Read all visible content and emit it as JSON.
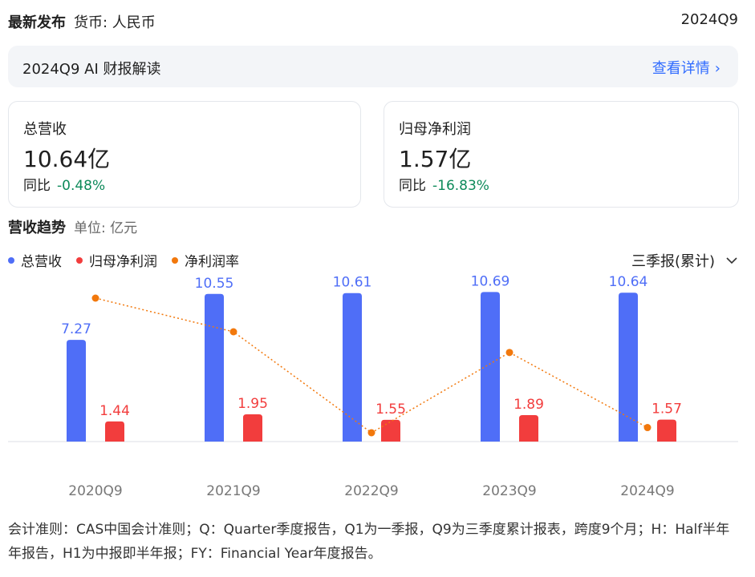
{
  "header": {
    "latest_label": "最新发布",
    "currency_label": "货币: 人民币",
    "period": "2024Q9"
  },
  "ai_banner": {
    "title": "2024Q9 AI 财报解读",
    "link_label": "查看详情"
  },
  "cards": [
    {
      "label": "总营收",
      "value": "10.64亿",
      "yoy_label": "同比",
      "yoy_value": "-0.48%"
    },
    {
      "label": "归母净利润",
      "value": "1.57亿",
      "yoy_label": "同比",
      "yoy_value": "-16.83%"
    }
  ],
  "section": {
    "title": "营收趋势",
    "unit": "单位: 亿元"
  },
  "period_selector": {
    "label": "三季报(累计)"
  },
  "legend": [
    {
      "label": "总营收",
      "color": "#4f6ef7"
    },
    {
      "label": "归母净利润",
      "color": "#f23d3d"
    },
    {
      "label": "净利润率",
      "color": "#f2780c"
    }
  ],
  "chart_data": {
    "type": "bar",
    "categories": [
      "2020Q9",
      "2021Q9",
      "2022Q9",
      "2023Q9",
      "2024Q9"
    ],
    "series": [
      {
        "name": "总营收",
        "type": "bar",
        "color": "#4f6ef7",
        "values": [
          7.27,
          10.55,
          10.61,
          10.69,
          10.64
        ],
        "labels": [
          "7.27",
          "10.55",
          "10.61",
          "10.69",
          "10.64"
        ]
      },
      {
        "name": "归母净利润",
        "type": "bar",
        "color": "#f23d3d",
        "values": [
          1.44,
          1.95,
          1.55,
          1.89,
          1.57
        ],
        "labels": [
          "1.44",
          "1.95",
          "1.55",
          "1.89",
          "1.57"
        ]
      },
      {
        "name": "净利润率",
        "type": "line",
        "color": "#f2780c",
        "values": [
          19.8,
          18.5,
          14.6,
          17.7,
          14.8
        ]
      }
    ]
  },
  "footnote": "会计准则：CAS中国会计准则；Q：Quarter季度报告，Q1为一季报，Q9为三季度累计报表，跨度9个月；H：Half半年年报告，H1为中报即半年报；FY：Financial Year年度报告。"
}
